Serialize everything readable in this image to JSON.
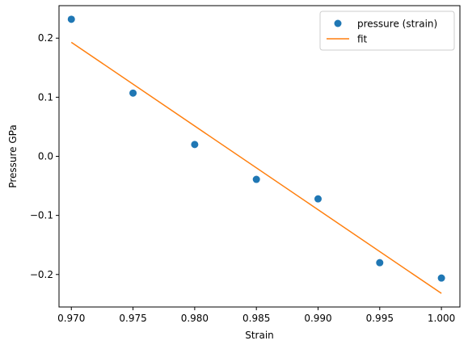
{
  "chart_data": {
    "type": "scatter",
    "title": "",
    "xlabel": "Strain",
    "ylabel": "Pressure GPa",
    "xlim": [
      0.969,
      1.0015
    ],
    "ylim": [
      -0.255,
      0.255
    ],
    "x_ticks": [
      0.97,
      0.975,
      0.98,
      0.985,
      0.99,
      0.995,
      1.0
    ],
    "x_tick_labels": [
      "0.970",
      "0.975",
      "0.980",
      "0.985",
      "0.990",
      "0.995",
      "1.000"
    ],
    "y_ticks": [
      -0.2,
      -0.1,
      0.0,
      0.1,
      0.2
    ],
    "y_tick_labels": [
      "−0.2",
      "−0.1",
      "0.0",
      "0.1",
      "0.2"
    ],
    "grid": false,
    "legend_position": "upper-right",
    "series": [
      {
        "name": "pressure (strain)",
        "kind": "scatter",
        "color": "#1f77b4",
        "x": [
          0.97,
          0.975,
          0.98,
          0.985,
          0.99,
          0.995,
          1.0
        ],
        "y": [
          0.232,
          0.107,
          0.02,
          -0.039,
          -0.072,
          -0.18,
          -0.206
        ]
      },
      {
        "name": "fit",
        "kind": "line",
        "color": "#ff7f0e",
        "x": [
          0.97,
          1.0
        ],
        "y": [
          0.193,
          -0.232
        ]
      }
    ]
  }
}
